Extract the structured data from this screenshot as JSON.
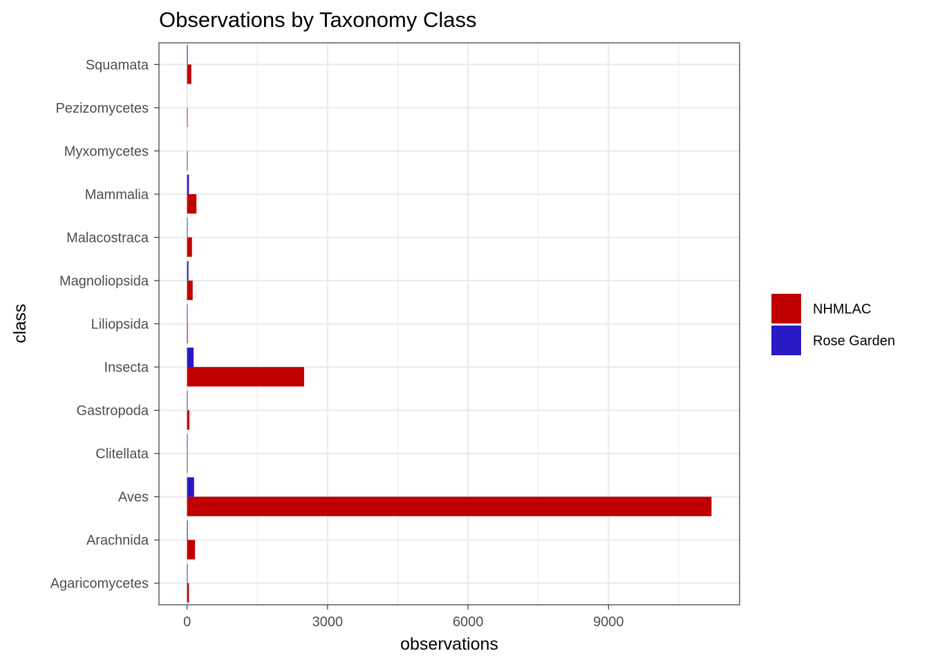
{
  "chart_data": {
    "type": "bar",
    "orientation": "horizontal",
    "title": "Observations by Taxonomy Class",
    "xlabel": "observations",
    "ylabel": "class",
    "xlim": [
      -600,
      11800
    ],
    "xticks": [
      0,
      3000,
      6000,
      9000
    ],
    "xtick_labels": [
      "0",
      "3000",
      "6000",
      "9000"
    ],
    "grid": true,
    "legend_position": "right",
    "categories": [
      "Agaricomycetes",
      "Arachnida",
      "Aves",
      "Clitellata",
      "Gastropoda",
      "Insecta",
      "Liliopsida",
      "Magnoliopsida",
      "Malacostraca",
      "Mammalia",
      "Myxomycetes",
      "Pezizomycetes",
      "Squamata"
    ],
    "series": [
      {
        "name": "NHMLAC",
        "color": "#c00000",
        "values": [
          40,
          170,
          11200,
          5,
          50,
          2500,
          15,
          120,
          105,
          200,
          2,
          2,
          90
        ]
      },
      {
        "name": "Rose Garden",
        "color": "#2a1ac6",
        "values": [
          2,
          15,
          150,
          1,
          2,
          140,
          12,
          30,
          3,
          40,
          0,
          0,
          15
        ]
      }
    ]
  }
}
